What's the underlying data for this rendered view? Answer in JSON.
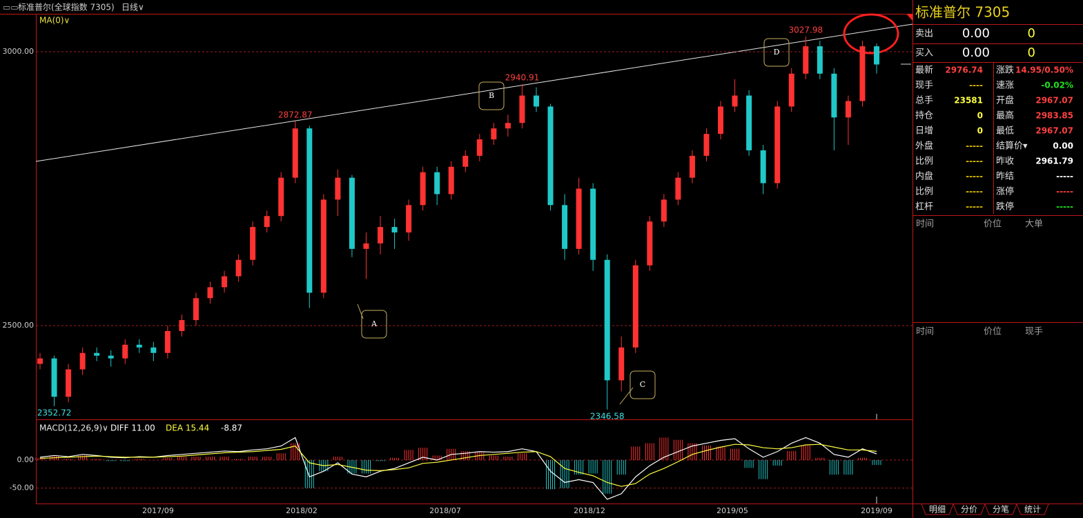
{
  "header": {
    "title": "标准普尔(全球指数 7305)",
    "period": "日线∨",
    "ma": "MA(0)∨"
  },
  "chart_data": {
    "type": "candlestick",
    "up_color": "#ff3232",
    "down_color": "#20c8c8",
    "ylim": [
      2328.7,
      3069.3
    ],
    "yticks": [
      {
        "value": 2500,
        "label": "2500.00"
      },
      {
        "value": 3000,
        "label": "3000.00"
      }
    ],
    "grid": true,
    "x_labels": [
      "2017/09",
      "2018/02",
      "2018/07",
      "2018/12",
      "2019/05",
      "2019/09"
    ],
    "ohlc": [
      [
        2430,
        2450,
        2420,
        2440
      ],
      [
        2440,
        2445,
        2352.72,
        2370
      ],
      [
        2370,
        2430,
        2360,
        2420
      ],
      [
        2420,
        2460,
        2410,
        2450
      ],
      [
        2450,
        2460,
        2435,
        2445
      ],
      [
        2445,
        2455,
        2425,
        2440
      ],
      [
        2440,
        2475,
        2430,
        2465
      ],
      [
        2465,
        2475,
        2450,
        2460
      ],
      [
        2460,
        2470,
        2435,
        2450
      ],
      [
        2450,
        2500,
        2440,
        2490
      ],
      [
        2490,
        2520,
        2480,
        2510
      ],
      [
        2510,
        2560,
        2500,
        2550
      ],
      [
        2550,
        2580,
        2540,
        2570
      ],
      [
        2570,
        2600,
        2560,
        2590
      ],
      [
        2590,
        2630,
        2580,
        2620
      ],
      [
        2620,
        2690,
        2610,
        2680
      ],
      [
        2680,
        2710,
        2670,
        2700
      ],
      [
        2700,
        2780,
        2690,
        2770
      ],
      [
        2770,
        2872.87,
        2760,
        2860
      ],
      [
        2860,
        2865,
        2532,
        2560
      ],
      [
        2560,
        2740,
        2550,
        2730
      ],
      [
        2730,
        2785,
        2700,
        2770
      ],
      [
        2770,
        2775,
        2625,
        2640
      ],
      [
        2640,
        2670,
        2585,
        2650
      ],
      [
        2650,
        2700,
        2630,
        2680
      ],
      [
        2680,
        2695,
        2640,
        2670
      ],
      [
        2670,
        2730,
        2655,
        2720
      ],
      [
        2720,
        2790,
        2710,
        2780
      ],
      [
        2780,
        2790,
        2720,
        2740
      ],
      [
        2740,
        2800,
        2730,
        2790
      ],
      [
        2790,
        2820,
        2780,
        2810
      ],
      [
        2810,
        2850,
        2800,
        2840
      ],
      [
        2840,
        2870,
        2830,
        2860
      ],
      [
        2860,
        2885,
        2845,
        2870
      ],
      [
        2870,
        2940.91,
        2860,
        2920
      ],
      [
        2920,
        2935,
        2890,
        2900
      ],
      [
        2900,
        2905,
        2710,
        2720
      ],
      [
        2720,
        2740,
        2620,
        2640
      ],
      [
        2640,
        2770,
        2630,
        2750
      ],
      [
        2750,
        2760,
        2600,
        2620
      ],
      [
        2620,
        2630,
        2346.58,
        2400
      ],
      [
        2400,
        2480,
        2380,
        2460
      ],
      [
        2460,
        2620,
        2450,
        2610
      ],
      [
        2610,
        2700,
        2600,
        2690
      ],
      [
        2690,
        2740,
        2680,
        2730
      ],
      [
        2730,
        2780,
        2720,
        2770
      ],
      [
        2770,
        2820,
        2760,
        2810
      ],
      [
        2810,
        2860,
        2800,
        2850
      ],
      [
        2850,
        2910,
        2840,
        2900
      ],
      [
        2900,
        2950,
        2890,
        2920
      ],
      [
        2920,
        2930,
        2810,
        2820
      ],
      [
        2820,
        2830,
        2740,
        2760
      ],
      [
        2760,
        2910,
        2750,
        2900
      ],
      [
        2900,
        2970,
        2890,
        2960
      ],
      [
        2960,
        3027.98,
        2950,
        3010
      ],
      [
        3010,
        3020,
        2950,
        2960
      ],
      [
        2960,
        2970,
        2820,
        2880
      ],
      [
        2880,
        2920,
        2830,
        2910
      ],
      [
        2910,
        3020,
        2900,
        3010
      ],
      [
        3010,
        3015,
        2960,
        2976.74
      ]
    ],
    "annotations": [
      "A",
      "B",
      "C",
      "D"
    ],
    "macd": {
      "title": "MACD(12,26,9)∨",
      "diff_label": "DIFF 11.00",
      "dea_label": "DEA 15.44",
      "macd_label": "-8.87",
      "ylim": [
        -77.5,
        70
      ],
      "yticks": [
        {
          "value": 0,
          "label": "0.00"
        },
        {
          "value": -50,
          "label": "-50.00"
        }
      ],
      "diff_color": "#ffffff",
      "dea_color": "#ffff40",
      "diff": [
        5,
        8,
        6,
        10,
        8,
        5,
        4,
        6,
        5,
        8,
        10,
        12,
        14,
        16,
        15,
        18,
        20,
        25,
        40,
        -30,
        -20,
        -5,
        -25,
        -30,
        -20,
        -15,
        -5,
        5,
        0,
        10,
        12,
        15,
        14,
        15,
        20,
        15,
        -20,
        -40,
        -35,
        -40,
        -70,
        -60,
        -30,
        -10,
        5,
        15,
        25,
        30,
        35,
        38,
        20,
        5,
        15,
        30,
        40,
        30,
        10,
        5,
        20,
        11
      ],
      "dea": [
        3,
        4,
        5,
        6,
        7,
        6,
        5,
        5,
        5,
        6,
        7,
        9,
        11,
        13,
        14,
        15,
        17,
        19,
        25,
        -5,
        -10,
        -8,
        -13,
        -18,
        -19,
        -17,
        -14,
        -6,
        -4,
        0,
        4,
        8,
        10,
        12,
        14,
        15,
        6,
        -15,
        -22,
        -28,
        -40,
        -47,
        -42,
        -25,
        -15,
        -3,
        10,
        17,
        23,
        28,
        27,
        22,
        20,
        22,
        27,
        28,
        23,
        18,
        18,
        15.44
      ],
      "hist": [
        4,
        8,
        2,
        8,
        2,
        -2,
        -2,
        2,
        0,
        4,
        6,
        6,
        6,
        6,
        2,
        6,
        6,
        12,
        30,
        -50,
        -20,
        6,
        -24,
        -24,
        -2,
        4,
        18,
        22,
        8,
        20,
        16,
        14,
        8,
        6,
        12,
        0,
        -52,
        -50,
        -26,
        -24,
        -60,
        -26,
        24,
        30,
        40,
        36,
        30,
        26,
        24,
        20,
        -14,
        -34,
        -10,
        16,
        26,
        4,
        -26,
        -26,
        4,
        -8.87
      ]
    }
  },
  "quote": {
    "title": "标准普尔  7305",
    "sell": {
      "label": "卖出",
      "price": "0.00",
      "volume": 0
    },
    "buy": {
      "label": "买入",
      "price": "0.00",
      "volume": 0
    },
    "rows": [
      {
        "l1": "最新",
        "v1": 2976.74,
        "c1": "#ff4040",
        "l2": "涨跌",
        "v2": "14.95/0.50%",
        "c2": "#ff4040"
      },
      {
        "l1": "现手",
        "v1": "----",
        "c1": "#e0c000",
        "l2": "速涨",
        "v2": "-0.02%",
        "c2": "#20e020"
      },
      {
        "l1": "总手",
        "v1": 23581,
        "c1": "#ffff40",
        "l2": "开盘",
        "v2": 2967.07,
        "c2": "#ff4040"
      },
      {
        "l1": "持仓",
        "v1": 0,
        "c1": "#ffff40",
        "l2": "最高",
        "v2": 2983.85,
        "c2": "#ff4040"
      },
      {
        "l1": "日增",
        "v1": 0,
        "c1": "#ffff40",
        "l2": "最低",
        "v2": 2967.07,
        "c2": "#ff4040"
      },
      {
        "l1": "外盘",
        "v1": "-----",
        "c1": "#e0c000",
        "l2": "结算价▾",
        "v2": "0.00",
        "c2": "#ffffff"
      },
      {
        "l1": "比例",
        "v1": "-----",
        "c1": "#e0c000",
        "l2": "昨收",
        "v2": 2961.79,
        "c2": "#ffffff"
      },
      {
        "l1": "内盘",
        "v1": "-----",
        "c1": "#e0c000",
        "l2": "昨结",
        "v2": "-----",
        "c2": "#ffffff"
      },
      {
        "l1": "比例",
        "v1": "-----",
        "c1": "#e0c000",
        "l2": "涨停",
        "v2": "-----",
        "c2": "#ff4040"
      },
      {
        "l1": "杠杆",
        "v1": "-----",
        "c1": "#e0c000",
        "l2": "跌停",
        "v2": "-----",
        "c2": "#20e020"
      }
    ],
    "big_orders": [
      "时间",
      "价位",
      "大单"
    ],
    "ticks": [
      "时间",
      "价位",
      "现手"
    ],
    "tabs": [
      "明细",
      "分价",
      "分笔",
      "统计"
    ]
  }
}
